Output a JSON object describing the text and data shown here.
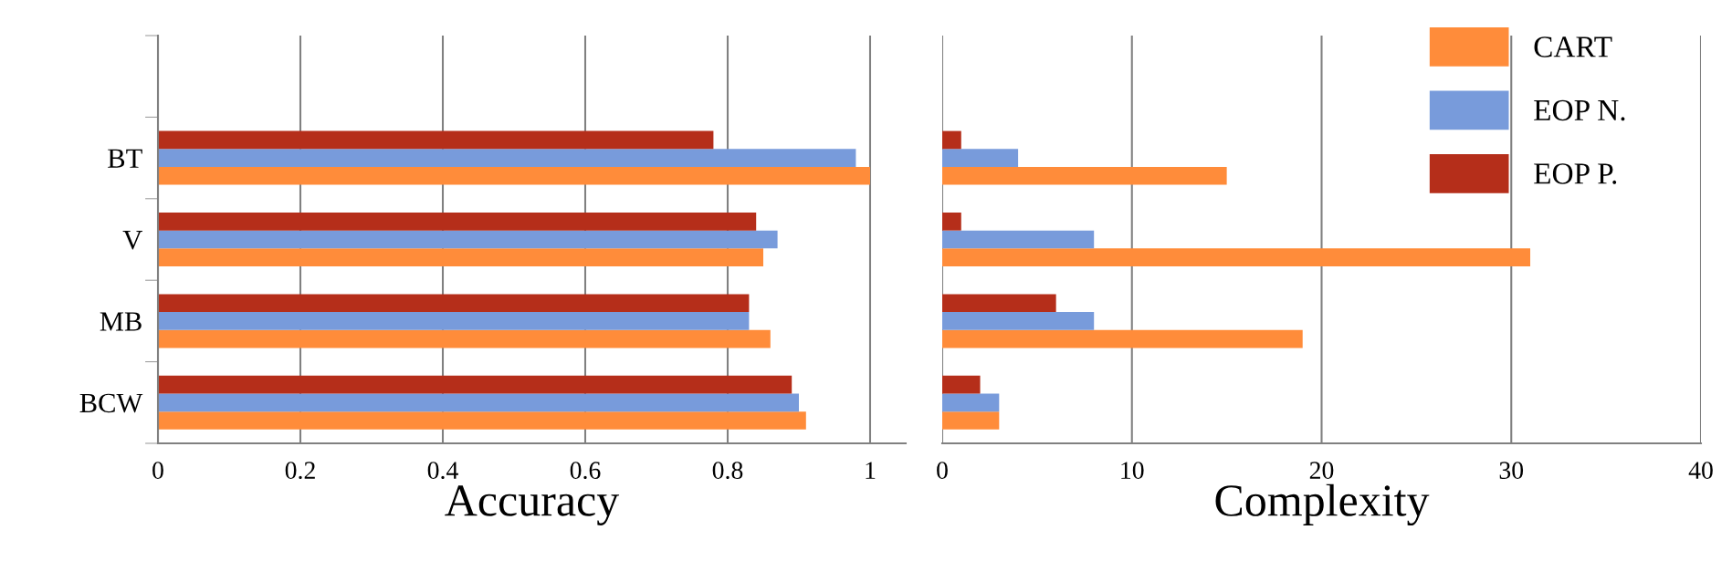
{
  "chart_data": [
    {
      "type": "bar",
      "orientation": "horizontal",
      "xlabel": "Accuracy",
      "categories": [
        null,
        "BT",
        "V",
        "MB",
        "BCW"
      ],
      "xlim": [
        0,
        1.05
      ],
      "xticks": [
        0,
        0.2,
        0.4,
        0.6,
        0.8,
        1
      ],
      "grid": "x",
      "legend": "top right",
      "series": [
        {
          "name": "CART",
          "color": "#ff8c3a",
          "values": [
            null,
            1.0,
            0.85,
            0.86,
            0.91
          ]
        },
        {
          "name": "EOP N.",
          "color": "#789bdb",
          "values": [
            null,
            0.98,
            0.87,
            0.83,
            0.9
          ]
        },
        {
          "name": "EOP P.",
          "color": "#b52e1a",
          "values": [
            null,
            0.78,
            0.84,
            0.83,
            0.89
          ]
        }
      ]
    },
    {
      "type": "bar",
      "orientation": "horizontal",
      "xlabel": "Complexity",
      "categories": [
        null,
        null,
        null,
        null,
        null
      ],
      "xlim": [
        0,
        40
      ],
      "xticks": [
        0,
        10,
        20,
        30,
        40
      ],
      "grid": "x",
      "tick_labels": "x",
      "series": [
        {
          "color": "#ff8c3a",
          "values": [
            null,
            15,
            31,
            19,
            3
          ]
        },
        {
          "color": "#789bdb",
          "values": [
            null,
            4,
            8,
            8,
            3
          ]
        },
        {
          "color": "#b52e1a",
          "values": [
            null,
            1,
            1,
            6,
            2
          ]
        }
      ]
    }
  ]
}
